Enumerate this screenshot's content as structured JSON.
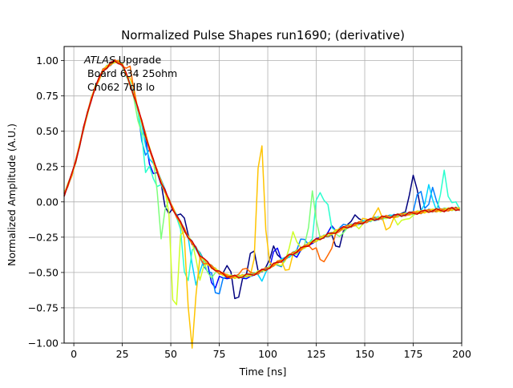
{
  "chart_data": {
    "type": "line",
    "title": "Normalized Pulse Shapes run1690; (derivative)",
    "xlabel": "Time [ns]",
    "ylabel": "Normalized Amplitude (A.U.)",
    "xlim": [
      -5,
      200
    ],
    "ylim": [
      -1.0,
      1.1
    ],
    "xticks": [
      0,
      25,
      50,
      75,
      100,
      125,
      150,
      175,
      200
    ],
    "xtick_labels": [
      "0",
      "25",
      "50",
      "75",
      "100",
      "125",
      "150",
      "175",
      "200"
    ],
    "yticks": [
      -1.0,
      -0.75,
      -0.5,
      -0.25,
      0.0,
      0.25,
      0.5,
      0.75,
      1.0
    ],
    "ytick_labels": [
      "−1.00",
      "−0.75",
      "−0.50",
      "−0.25",
      "0.00",
      "0.25",
      "0.50",
      "0.75",
      "1.00"
    ],
    "grid": true,
    "legend": "none",
    "colormap": "jet",
    "annotation": {
      "italic": "ATLAS",
      "line1": " Upgrade",
      "line2": "Board 634 25ohm",
      "line3": "Ch062 7dB lo"
    },
    "colors": [
      "#00007f",
      "#0000ff",
      "#007fff",
      "#00d4ff",
      "#29ffce",
      "#7dff7a",
      "#ceff29",
      "#ffc400",
      "#ff6800",
      "#d40000"
    ],
    "base_curve": {
      "x": [
        -5,
        0,
        5,
        10,
        15,
        20,
        22,
        25,
        30,
        35,
        40,
        45,
        50,
        55,
        60,
        65,
        70,
        75,
        80,
        85,
        90,
        95,
        100,
        105,
        110,
        115,
        120,
        125,
        130,
        135,
        140,
        145,
        150,
        155,
        160,
        165,
        170,
        175,
        180,
        185,
        190,
        195,
        200
      ],
      "y": [
        0.05,
        0.23,
        0.52,
        0.78,
        0.93,
        0.99,
        1.0,
        0.97,
        0.8,
        0.57,
        0.33,
        0.14,
        -0.02,
        -0.15,
        -0.27,
        -0.37,
        -0.45,
        -0.5,
        -0.53,
        -0.53,
        -0.52,
        -0.5,
        -0.47,
        -0.43,
        -0.39,
        -0.35,
        -0.31,
        -0.27,
        -0.24,
        -0.21,
        -0.18,
        -0.16,
        -0.14,
        -0.12,
        -0.11,
        -0.1,
        -0.09,
        -0.08,
        -0.07,
        -0.06,
        -0.06,
        -0.05,
        -0.05
      ]
    },
    "series": [
      {
        "color": "#00007f",
        "spikes": [
          [
            48,
            -0.08
          ],
          [
            56,
            -0.08
          ],
          [
            80,
            -0.45
          ],
          [
            84,
            -0.73
          ],
          [
            92,
            -0.32
          ],
          [
            103,
            -0.3
          ],
          [
            136,
            -0.35
          ],
          [
            145,
            -0.08
          ],
          [
            174,
            0.08
          ],
          [
            176,
            0.1
          ]
        ]
      },
      {
        "color": "#0000ff",
        "spikes": [
          [
            35,
            0.55
          ],
          [
            40,
            0.2
          ],
          [
            46,
            0.1
          ],
          [
            72,
            -0.62
          ],
          [
            77,
            -0.55
          ],
          [
            90,
            -0.55
          ],
          [
            104,
            -0.32
          ],
          [
            115,
            -0.38
          ],
          [
            133,
            -0.18
          ]
        ]
      },
      {
        "color": "#007fff",
        "spikes": [
          [
            36,
            0.35
          ],
          [
            44,
            0.2
          ],
          [
            68,
            -0.5
          ],
          [
            74,
            -0.7
          ],
          [
            107,
            -0.45
          ],
          [
            118,
            -0.25
          ],
          [
            128,
            -0.25
          ],
          [
            140,
            -0.15
          ],
          [
            158,
            -0.13
          ],
          [
            178,
            0.1
          ],
          [
            185,
            0.1
          ]
        ]
      },
      {
        "color": "#00d4ff",
        "spikes": [
          [
            38,
            0.32
          ],
          [
            43,
            0.22
          ],
          [
            62,
            -0.48
          ],
          [
            64,
            -0.5
          ],
          [
            97,
            -0.55
          ],
          [
            122,
            -0.3
          ],
          [
            183,
            0.12
          ],
          [
            189,
            -0.05
          ]
        ]
      },
      {
        "color": "#29ffce",
        "spikes": [
          [
            37,
            0.2
          ],
          [
            42,
            0.1
          ],
          [
            58,
            -0.62
          ],
          [
            126,
            0.1
          ],
          [
            130,
            0.05
          ],
          [
            191,
            0.22
          ],
          [
            196,
            0.0
          ]
        ]
      },
      {
        "color": "#7dff7a",
        "spikes": [
          [
            34,
            0.5
          ],
          [
            45,
            -0.25
          ],
          [
            70,
            -0.55
          ],
          [
            115,
            -0.36
          ],
          [
            123,
            0.08
          ],
          [
            138,
            -0.25
          ]
        ]
      },
      {
        "color": "#ceff29",
        "spikes": [
          [
            33,
            0.65
          ],
          [
            52,
            -0.9
          ],
          [
            65,
            -0.55
          ],
          [
            108,
            -0.45
          ],
          [
            113,
            -0.2
          ],
          [
            147,
            -0.18
          ],
          [
            167,
            -0.16
          ],
          [
            172,
            -0.14
          ]
        ]
      },
      {
        "color": "#ffc400",
        "spikes": [
          [
            30,
            0.85
          ],
          [
            60,
            -0.88
          ],
          [
            62,
            -0.65
          ],
          [
            96,
            0.43
          ],
          [
            98,
            -0.25
          ],
          [
            110,
            -0.5
          ],
          [
            150,
            -0.12
          ],
          [
            157,
            -0.05
          ],
          [
            162,
            -0.22
          ]
        ]
      },
      {
        "color": "#ff6800",
        "spikes": [
          [
            29,
            0.95
          ],
          [
            66,
            -0.42
          ],
          [
            88,
            -0.45
          ],
          [
            124,
            -0.33
          ],
          [
            128,
            -0.45
          ],
          [
            132,
            -0.38
          ]
        ]
      },
      {
        "color": "#d40000",
        "spikes": []
      }
    ]
  }
}
